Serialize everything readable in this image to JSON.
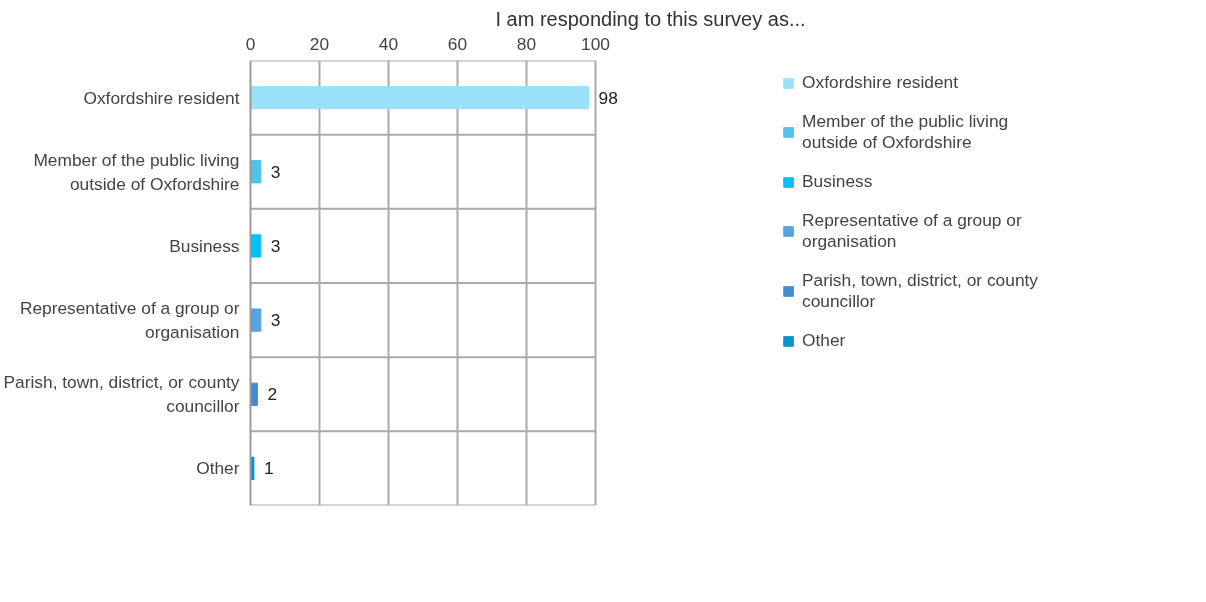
{
  "chart_data": {
    "type": "bar",
    "orientation": "horizontal",
    "title": "I am responding to this survey as...",
    "categories": [
      "Oxfordshire resident",
      "Member of the public living outside of Oxfordshire",
      "Business",
      "Representative of a group or organisation",
      "Parish, town, district, or county councillor",
      "Other"
    ],
    "series": [
      {
        "name": "Oxfordshire resident",
        "color": "#99e2fa",
        "values": [
          98,
          null,
          null,
          null,
          null,
          null
        ]
      },
      {
        "name": "Member of the public living outside of Oxfordshire",
        "color": "#4fc3e8",
        "values": [
          null,
          3,
          null,
          null,
          null,
          null
        ]
      },
      {
        "name": "Business",
        "color": "#00c2f5",
        "values": [
          null,
          null,
          3,
          null,
          null,
          null
        ]
      },
      {
        "name": "Representative of a group or organisation",
        "color": "#55a4e0",
        "values": [
          null,
          null,
          null,
          3,
          null,
          null
        ]
      },
      {
        "name": "Parish, town, district, or county councillor",
        "color": "#3f8cd6",
        "values": [
          null,
          null,
          null,
          null,
          2,
          null
        ]
      },
      {
        "name": "Other",
        "color": "#0a95c8",
        "values": [
          null,
          null,
          null,
          null,
          null,
          1
        ]
      }
    ],
    "xlim": [
      0,
      100
    ],
    "xticks": [
      0,
      20,
      40,
      60,
      80,
      100
    ],
    "grid": true,
    "legend": "right",
    "data_labels": true
  }
}
